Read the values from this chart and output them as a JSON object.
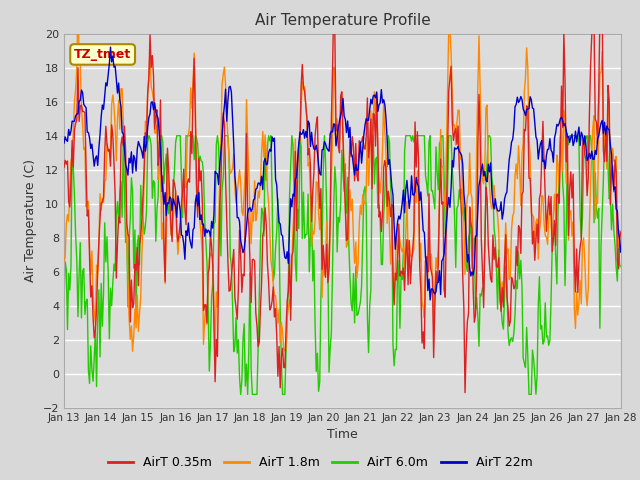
{
  "title": "Air Temperature Profile",
  "xlabel": "Time",
  "ylabel": "Air Temperature (C)",
  "ylim": [
    -2,
    20
  ],
  "yticks": [
    -2,
    0,
    2,
    4,
    6,
    8,
    10,
    12,
    14,
    16,
    18,
    20
  ],
  "annotation": "TZ_tmet",
  "annotation_color": "#cc0000",
  "annotation_bg": "#ffffcc",
  "annotation_border": "#aa8800",
  "fig_bg": "#d8d8d8",
  "plot_bg": "#dcdcdc",
  "line_colors": {
    "AirT 0.35m": "#dd2020",
    "AirT 1.8m": "#ff8800",
    "AirT 6.0m": "#22cc00",
    "AirT 22m": "#0000cc"
  },
  "legend_labels": [
    "AirT 0.35m",
    "AirT 1.8m",
    "AirT 6.0m",
    "AirT 22m"
  ],
  "x_tick_labels": [
    "Jan 13",
    "Jan 14",
    "Jan 15",
    "Jan 16",
    "Jan 17",
    "Jan 18",
    "Jan 19",
    "Jan 20",
    "Jan 21",
    "Jan 22",
    "Jan 23",
    "Jan 24",
    "Jan 25",
    "Jan 26",
    "Jan 27",
    "Jan 28"
  ],
  "n_points": 480,
  "n_days": 15,
  "figwidth": 6.4,
  "figheight": 4.8,
  "dpi": 100
}
